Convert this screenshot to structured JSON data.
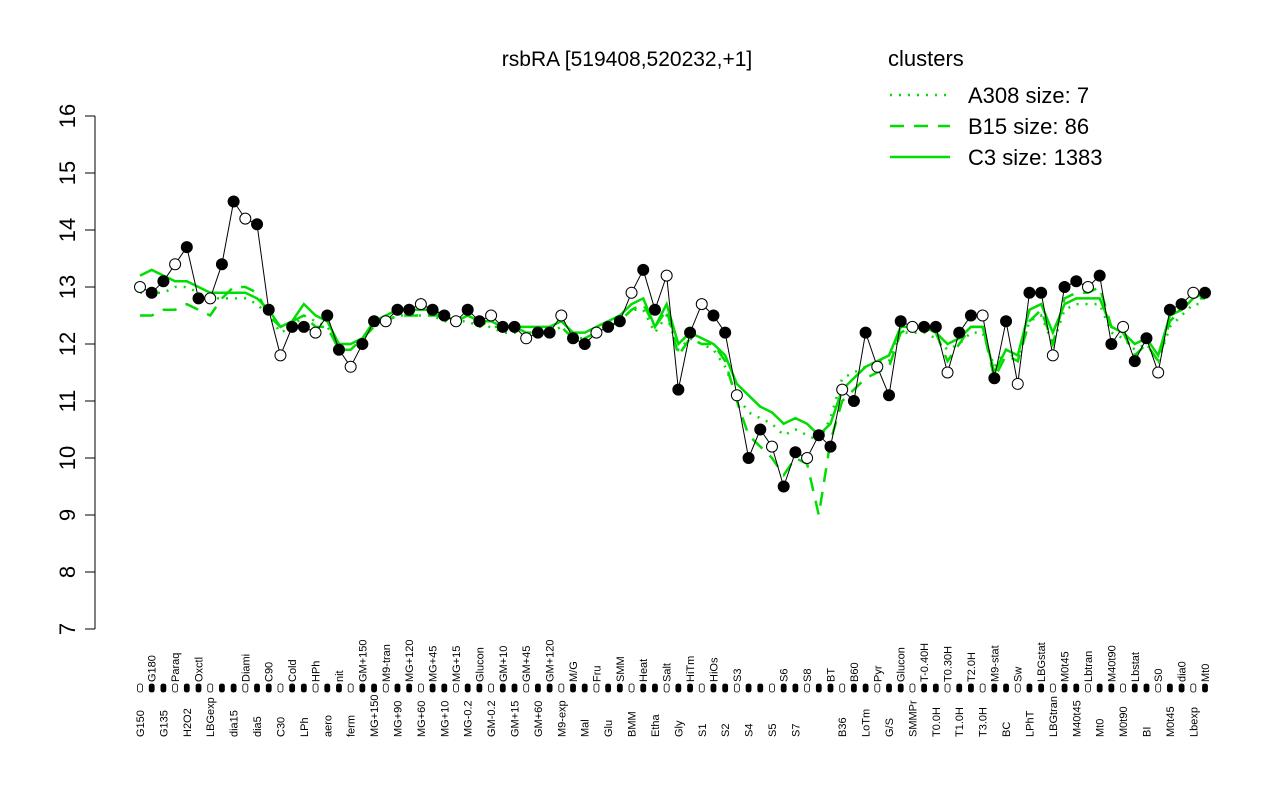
{
  "chart_data": {
    "type": "line",
    "title": "rsbRA [519408,520232,+1]",
    "legend_title": "clusters",
    "legend_position": "top-right",
    "ylim": [
      7,
      16
    ],
    "yticks": [
      7,
      8,
      9,
      10,
      11,
      12,
      13,
      14,
      15,
      16
    ],
    "color": "#000000",
    "categories": [
      "G150",
      "G180",
      "G135",
      "Paraq",
      "H2O2",
      "Oxctl",
      "LBGexp",
      null,
      "dia15",
      "Diami",
      "dia5",
      "C90",
      "C30",
      "Cold",
      "LPh",
      "HPh",
      "aero",
      "nit",
      "ferm",
      "GM+150",
      "MG+150",
      "M9-tran",
      "MG+90",
      "MG+120",
      "MG+60",
      "MG+45",
      "MG+10",
      "MG+15",
      "MG-0.2",
      "Glucon",
      "GM-0.2",
      "GM+10",
      "GM+15",
      "GM+45",
      "GM+60",
      "GM+120",
      "M9-exp",
      "M/G",
      "Mal",
      "Fru",
      "Glu",
      "SMM",
      "BMM",
      "Heat",
      "Etha",
      "Salt",
      "Gly",
      "HiTm",
      "S1",
      "HiOs",
      "S2",
      "S3",
      "S4",
      null,
      "S5",
      "S6",
      "S7",
      "S8",
      null,
      "BT",
      "B36",
      "B60",
      "LoTm",
      "Pyr",
      "G/S",
      "Glucon",
      "SMMPr",
      "T-0.40H",
      "T0.0H",
      "T0.30H",
      "T1.0H",
      "T2.0H",
      "T3.0H",
      "M9-stat",
      "BC",
      "Sw",
      "LPhT",
      "LBGstat",
      "LBGtran",
      "M0t45",
      "M40t45",
      "Lbtran",
      "Mt0",
      "M40t90",
      "M0t90",
      "Lbstat",
      "BI",
      "S0",
      "M0t45",
      "dia0",
      "Lbexp",
      "Mt0"
    ],
    "values": [
      13.0,
      12.9,
      13.1,
      13.4,
      13.7,
      12.8,
      12.8,
      13.4,
      14.5,
      14.2,
      14.1,
      12.6,
      11.8,
      12.3,
      12.3,
      12.2,
      12.5,
      11.9,
      11.6,
      12.0,
      12.4,
      12.4,
      12.6,
      12.6,
      12.7,
      12.6,
      12.5,
      12.4,
      12.6,
      12.4,
      12.5,
      12.3,
      12.3,
      12.1,
      12.2,
      12.2,
      12.5,
      12.1,
      12.0,
      12.2,
      12.3,
      12.4,
      12.9,
      13.3,
      12.6,
      13.2,
      11.2,
      12.2,
      12.7,
      12.5,
      12.2,
      11.1,
      10.0,
      10.5,
      10.2,
      9.5,
      10.1,
      10.0,
      10.4,
      10.2,
      11.2,
      11.0,
      12.2,
      11.6,
      11.1,
      12.4,
      12.3,
      12.3,
      12.3,
      11.5,
      12.2,
      12.5,
      12.5,
      11.4,
      12.4,
      11.3,
      12.9,
      12.9,
      11.8,
      13.0,
      13.1,
      13.0,
      13.2,
      12.0,
      12.3,
      11.7,
      12.1,
      11.5,
      12.6,
      12.7,
      12.9,
      12.9
    ],
    "series": [
      {
        "name": "A308 size: 7",
        "color": "#00dd00",
        "dash": "dotted",
        "values": [
          12.9,
          12.9,
          12.9,
          13.0,
          13.0,
          12.9,
          12.8,
          12.8,
          12.8,
          12.8,
          12.7,
          12.5,
          12.2,
          12.3,
          12.5,
          12.4,
          12.3,
          12.0,
          12.0,
          12.1,
          12.3,
          12.4,
          12.5,
          12.5,
          12.5,
          12.5,
          12.4,
          12.4,
          12.4,
          12.3,
          12.3,
          12.2,
          12.2,
          12.2,
          12.2,
          12.2,
          12.3,
          12.1,
          12.1,
          12.2,
          12.3,
          12.4,
          12.6,
          12.6,
          12.2,
          12.5,
          11.9,
          12.1,
          12.0,
          11.9,
          11.6,
          11.1,
          10.8,
          10.7,
          10.6,
          10.4,
          10.5,
          10.4,
          10.3,
          10.7,
          11.4,
          11.5,
          11.6,
          11.7,
          11.7,
          12.2,
          12.2,
          12.2,
          12.1,
          11.9,
          12.0,
          12.2,
          12.2,
          11.6,
          11.9,
          11.7,
          12.4,
          12.5,
          12.0,
          12.6,
          12.7,
          12.7,
          12.7,
          12.2,
          12.1,
          11.9,
          12.0,
          11.7,
          12.3,
          12.5,
          12.7,
          12.7
        ]
      },
      {
        "name": "B15 size: 86",
        "color": "#00dd00",
        "dash": "dashed",
        "values": [
          12.5,
          12.5,
          12.6,
          12.6,
          12.7,
          12.6,
          12.5,
          12.8,
          13.0,
          13.0,
          12.9,
          12.5,
          12.3,
          12.4,
          12.5,
          12.3,
          12.3,
          11.9,
          11.9,
          12.1,
          12.3,
          12.4,
          12.5,
          12.5,
          12.5,
          12.5,
          12.5,
          12.4,
          12.5,
          12.4,
          12.3,
          12.3,
          12.3,
          12.2,
          12.2,
          12.2,
          12.3,
          12.1,
          12.1,
          12.2,
          12.3,
          12.4,
          12.6,
          12.7,
          12.3,
          12.6,
          11.8,
          12.1,
          12.0,
          12.0,
          11.7,
          11.0,
          10.4,
          10.2,
          10.0,
          9.7,
          10.0,
          9.9,
          9.0,
          10.3,
          11.0,
          11.2,
          11.4,
          11.5,
          11.6,
          12.2,
          12.3,
          12.3,
          12.2,
          11.7,
          12.0,
          12.3,
          12.3,
          11.4,
          11.8,
          11.7,
          12.4,
          12.6,
          12.0,
          12.8,
          12.9,
          12.9,
          13.0,
          12.3,
          12.2,
          11.8,
          12.0,
          11.7,
          12.4,
          12.6,
          12.8,
          12.8
        ]
      },
      {
        "name": "C3 size: 1383",
        "color": "#00dd00",
        "dash": "solid",
        "values": [
          13.2,
          13.3,
          13.2,
          13.1,
          13.1,
          13.0,
          12.9,
          12.9,
          12.9,
          12.9,
          12.8,
          12.6,
          12.3,
          12.4,
          12.7,
          12.5,
          12.4,
          12.0,
          12.0,
          12.1,
          12.4,
          12.5,
          12.6,
          12.6,
          12.6,
          12.6,
          12.5,
          12.4,
          12.5,
          12.4,
          12.4,
          12.3,
          12.3,
          12.3,
          12.3,
          12.3,
          12.4,
          12.2,
          12.2,
          12.3,
          12.4,
          12.5,
          12.7,
          12.8,
          12.3,
          12.7,
          12.0,
          12.2,
          12.1,
          12.0,
          11.8,
          11.3,
          11.1,
          10.9,
          10.8,
          10.6,
          10.7,
          10.6,
          10.4,
          10.6,
          11.2,
          11.4,
          11.6,
          11.7,
          11.8,
          12.3,
          12.3,
          12.3,
          12.2,
          12.0,
          12.1,
          12.3,
          12.3,
          11.5,
          11.9,
          11.8,
          12.6,
          12.7,
          12.2,
          12.7,
          12.8,
          12.8,
          12.8,
          12.3,
          12.2,
          12.0,
          12.1,
          11.8,
          12.5,
          12.6,
          12.8,
          12.9
        ]
      }
    ]
  }
}
